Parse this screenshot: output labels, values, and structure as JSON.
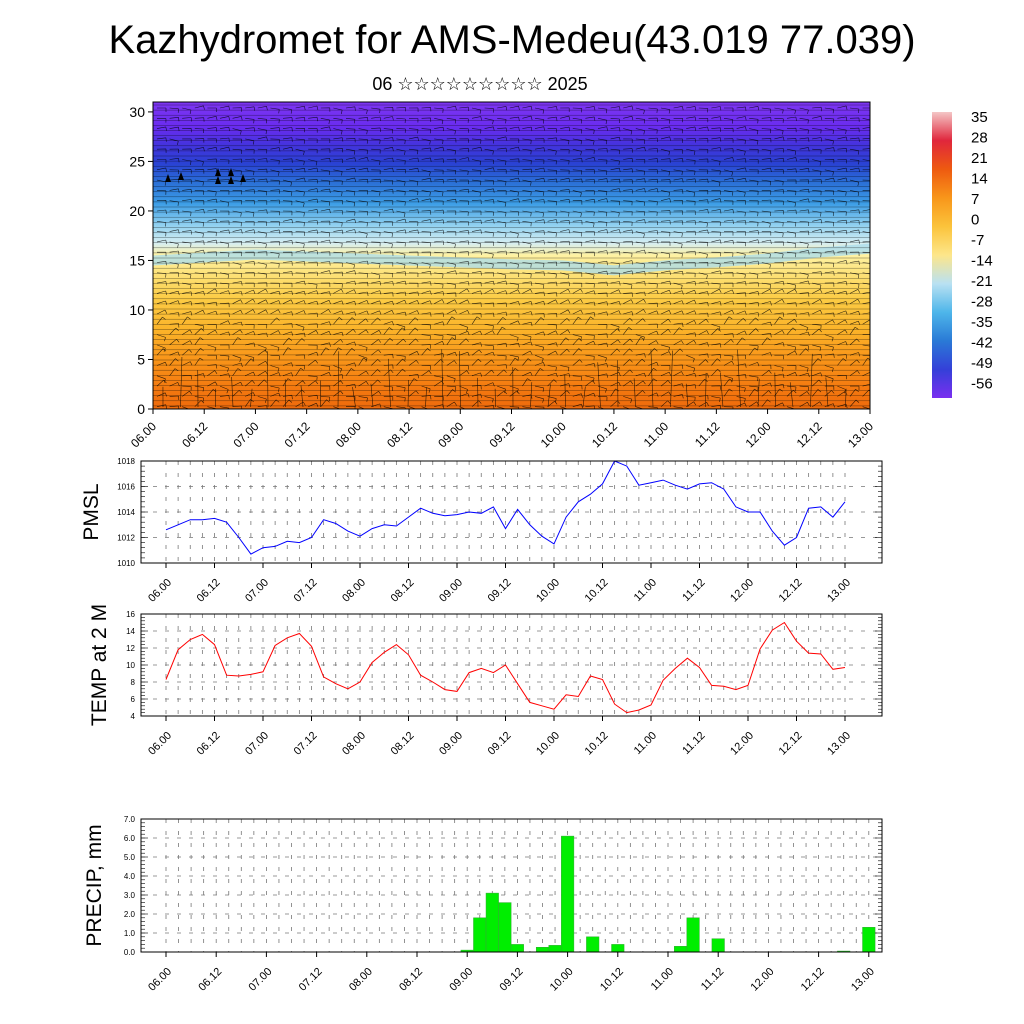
{
  "title": "Kazhydromet for AMS-Medeu(43.019 77.039)",
  "subtitle": "06 ☆☆☆☆☆☆☆☆☆ 2025",
  "chart_data": [
    {
      "type": "heatmap",
      "name": "cross-section",
      "description_colorscale": "temperature shaded by height with wind barbs",
      "x_tick_labels": [
        "06.00",
        "06.12",
        "07.00",
        "07.12",
        "08.00",
        "08.12",
        "09.00",
        "09.12",
        "10.00",
        "10.12",
        "11.00",
        "11.12",
        "12.00",
        "12.12",
        "13.00"
      ],
      "y_ticks": [
        0,
        5,
        10,
        15,
        20,
        25,
        30
      ],
      "ylim": [
        0,
        31
      ],
      "colorbar_labels": [
        "35",
        "28",
        "21",
        "14",
        "7",
        "0",
        "-7",
        "-14",
        "-21",
        "-28",
        "-35",
        "-42",
        "-49",
        "-56"
      ],
      "colorbar_colors": [
        "#f4c6c6",
        "#e0263c",
        "#ee5a10",
        "#f8961a",
        "#fbc33b",
        "#fde68a",
        "#b9e1f2",
        "#4eb6ea",
        "#2a7ad6",
        "#3440d8",
        "#7a2ff0"
      ],
      "freezing_level_km": [
        15,
        15.3,
        15.6,
        15.4,
        15.2,
        15.0,
        14.8,
        14.6,
        14.5,
        14.0,
        14.5,
        14.8,
        15.2,
        15.8,
        16.2
      ]
    },
    {
      "type": "line",
      "ylabel": "PMSL",
      "color": "#0000ff",
      "ylim": [
        1010,
        1018
      ],
      "y_ticks": [
        "1010",
        "1012",
        "1014",
        "1016",
        "1018"
      ],
      "x_tick_labels": [
        "06.00",
        "06.12",
        "07.00",
        "07.12",
        "08.00",
        "08.12",
        "09.00",
        "09.12",
        "10.00",
        "10.12",
        "11.00",
        "11.12",
        "12.00",
        "12.12",
        "13.00"
      ],
      "values": [
        1012.6,
        1013.0,
        1013.4,
        1013.4,
        1013.5,
        1013.2,
        1012.0,
        1010.7,
        1011.2,
        1011.3,
        1011.7,
        1011.6,
        1012.0,
        1013.4,
        1013.1,
        1012.5,
        1012.1,
        1012.7,
        1013.0,
        1012.9,
        1013.6,
        1014.3,
        1013.9,
        1013.7,
        1013.8,
        1014.0,
        1013.9,
        1014.4,
        1012.7,
        1014.2,
        1013.0,
        1012.1,
        1011.5,
        1013.6,
        1014.8,
        1015.4,
        1016.2,
        1018.0,
        1017.6,
        1016.1,
        1016.3,
        1016.5,
        1016.1,
        1015.8,
        1016.2,
        1016.3,
        1015.8,
        1014.4,
        1014.0,
        1014.0,
        1012.5,
        1011.4,
        1012.0,
        1014.3,
        1014.4,
        1013.6,
        1014.8
      ]
    },
    {
      "type": "line",
      "ylabel": "TEMP at 2 M",
      "color": "#ff0000",
      "ylim": [
        4,
        16
      ],
      "y_ticks": [
        "4",
        "6",
        "8",
        "10",
        "12",
        "14",
        "16"
      ],
      "x_tick_labels": [
        "06.00",
        "06.12",
        "07.00",
        "07.12",
        "08.00",
        "08.12",
        "09.00",
        "09.12",
        "10.00",
        "10.12",
        "11.00",
        "11.12",
        "12.00",
        "12.12",
        "13.00"
      ],
      "values": [
        8.3,
        11.8,
        13.0,
        13.6,
        12.4,
        8.8,
        8.7,
        8.9,
        9.2,
        12.3,
        13.2,
        13.7,
        12.2,
        8.6,
        7.8,
        7.2,
        8.0,
        10.3,
        11.5,
        12.4,
        11.2,
        8.8,
        8.0,
        7.1,
        6.9,
        9.1,
        9.6,
        9.1,
        10.0,
        7.8,
        5.6,
        5.2,
        4.8,
        6.5,
        6.3,
        8.7,
        8.3,
        5.4,
        4.4,
        4.7,
        5.3,
        8.2,
        9.6,
        10.8,
        9.7,
        7.6,
        7.5,
        7.1,
        7.6,
        11.9,
        14.1,
        15.0,
        12.8,
        11.4,
        11.3,
        9.5,
        9.7
      ]
    },
    {
      "type": "bar",
      "ylabel": "PRECIP, mm",
      "color": "#00ee00",
      "ylim": [
        0,
        7
      ],
      "y_ticks": [
        "0.0",
        "1.0",
        "2.0",
        "3.0",
        "4.0",
        "5.0",
        "6.0",
        "7.0"
      ],
      "x_tick_labels": [
        "06.00",
        "06.12",
        "07.00",
        "07.12",
        "08.00",
        "08.12",
        "09.00",
        "09.12",
        "10.00",
        "10.12",
        "11.00",
        "11.12",
        "12.00",
        "12.12",
        "13.00"
      ],
      "values": [
        0,
        0,
        0,
        0,
        0,
        0,
        0,
        0,
        0,
        0,
        0,
        0,
        0,
        0,
        0,
        0,
        0,
        0,
        0,
        0,
        0,
        0,
        0,
        0,
        0.1,
        1.8,
        3.1,
        2.6,
        0.4,
        0,
        0.25,
        0.35,
        6.1,
        0,
        0.8,
        0,
        0.4,
        0,
        0,
        0,
        0,
        0.3,
        1.8,
        0,
        0.7,
        0,
        0,
        0,
        0,
        0,
        0,
        0,
        0,
        0,
        0.05,
        0,
        1.3
      ]
    }
  ]
}
